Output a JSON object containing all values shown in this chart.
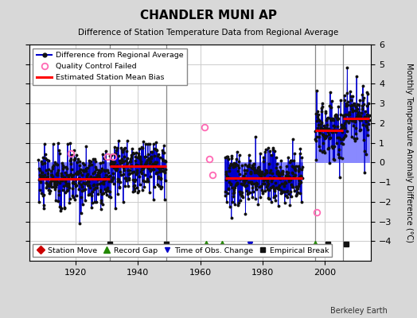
{
  "title": "CHANDLER MUNI AP",
  "subtitle": "Difference of Station Temperature Data from Regional Average",
  "ylabel": "Monthly Temperature Anomaly Difference (°C)",
  "background_color": "#d8d8d8",
  "plot_bg_color": "#ffffff",
  "ylim": [
    -5,
    6
  ],
  "xlim": [
    1905,
    2015
  ],
  "yticks": [
    -4,
    -3,
    -2,
    -1,
    0,
    1,
    2,
    3,
    4,
    5,
    6
  ],
  "xticks": [
    1920,
    1940,
    1960,
    1980,
    2000
  ],
  "grid_color": "#cccccc",
  "data_segments": [
    {
      "xstart": 1908.0,
      "xend": 1931.0,
      "bias": -0.85,
      "noise": 0.75,
      "seed": 10
    },
    {
      "xstart": 1931.0,
      "xend": 1949.0,
      "bias": -0.25,
      "noise": 0.65,
      "seed": 20
    },
    {
      "xstart": 1968.0,
      "xend": 1993.0,
      "bias": -0.8,
      "noise": 0.7,
      "seed": 30
    },
    {
      "xstart": 1997.0,
      "xend": 2006.0,
      "bias": 1.7,
      "noise": 0.85,
      "seed": 40
    },
    {
      "xstart": 2006.0,
      "xend": 2014.5,
      "bias": 2.35,
      "noise": 0.75,
      "seed": 50
    }
  ],
  "bias_segments": [
    {
      "xstart": 1908.0,
      "xend": 1931.0,
      "bias": -0.85
    },
    {
      "xstart": 1931.0,
      "xend": 1949.0,
      "bias": -0.2
    },
    {
      "xstart": 1968.0,
      "xend": 1993.0,
      "bias": -0.8
    },
    {
      "xstart": 1997.0,
      "xend": 2006.0,
      "bias": 1.65
    },
    {
      "xstart": 2006.0,
      "xend": 2014.5,
      "bias": 2.25
    }
  ],
  "vert_lines": [
    1931,
    1949,
    1997,
    2006
  ],
  "event_markers": {
    "empirical_breaks": [
      1931,
      1949,
      2001,
      2007
    ],
    "record_gaps": [
      1962,
      1967,
      1997
    ],
    "station_moves": [],
    "obs_changes": [
      1976
    ]
  },
  "qc_failed_points": [
    [
      1918.5,
      0.45
    ],
    [
      1930.2,
      0.28
    ],
    [
      1932.0,
      0.28
    ],
    [
      1961.5,
      1.78
    ],
    [
      1963.0,
      0.18
    ],
    [
      1964.0,
      -0.65
    ],
    [
      1997.5,
      -2.55
    ]
  ],
  "line_color": "#0000cc",
  "vline_color": "#8888ff",
  "dot_color": "#111111",
  "bias_color": "#ff0000",
  "qc_color": "#ff69b4",
  "marker_y": -4.15
}
